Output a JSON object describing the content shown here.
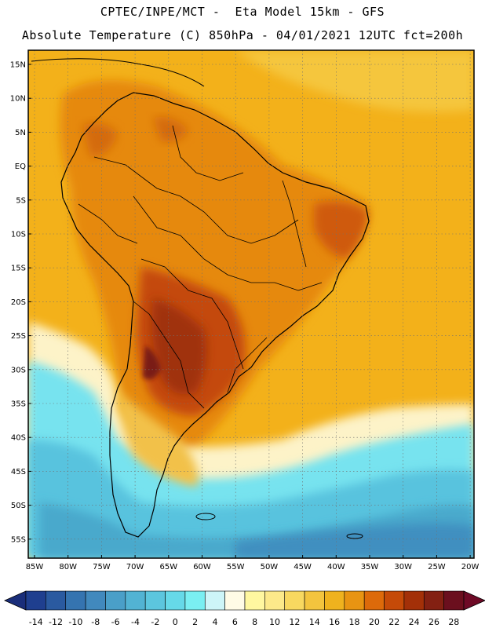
{
  "header": {
    "line1": "CPTEC/INPE/MCT -  Eta Model 15km - GFS",
    "line2": "Absolute Temperature (C) 850hPa - 04/01/2021 12UTC fct=200h"
  },
  "axes": {
    "lat_labels": [
      "15N",
      "10N",
      "5N",
      "EQ",
      "5S",
      "10S",
      "15S",
      "20S",
      "25S",
      "30S",
      "35S",
      "40S",
      "45S",
      "50S",
      "55S"
    ],
    "lon_labels": [
      "85W",
      "80W",
      "75W",
      "70W",
      "65W",
      "60W",
      "55W",
      "50W",
      "45W",
      "40W",
      "35W",
      "30W",
      "25W",
      "20W"
    ]
  },
  "colorbar": {
    "labels": [
      "-14",
      "-12",
      "-10",
      "-8",
      "-6",
      "-4",
      "-2",
      "0",
      "2",
      "4",
      "6",
      "8",
      "10",
      "12",
      "14",
      "16",
      "18",
      "20",
      "22",
      "24",
      "26",
      "28"
    ],
    "colors": [
      "#1f3f8f",
      "#2a5aa0",
      "#3574b0",
      "#4189bd",
      "#4a9fc8",
      "#52b3d3",
      "#5cc6de",
      "#66d9e8",
      "#7aeff2",
      "#cdf5f8",
      "#fffbe6",
      "#fff7a0",
      "#fce98a",
      "#f8d860",
      "#f3c43e",
      "#efb21e",
      "#e89412",
      "#dd6a0a",
      "#c54a08",
      "#a33008",
      "#832012",
      "#6b0f1e"
    ],
    "under_color": "#1a2e7a",
    "over_color": "#6e0a26"
  }
}
